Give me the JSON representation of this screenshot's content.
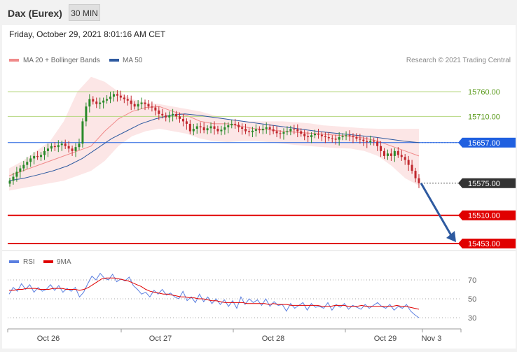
{
  "header": {
    "title": "Dax (Eurex)",
    "timeframe": "30 MIN"
  },
  "date_line": "Friday, October 29, 2021 8:01:16 AM CET",
  "copyright": "Research © 2021 Trading Central",
  "colors": {
    "bollinger": "#f08a8a",
    "ma50": "#2e5aa0",
    "resistance": "#b5d77f",
    "pivot": "#2060e0",
    "support": "#e00000",
    "price_box": "#333333",
    "up_candle": "#2a8a2a",
    "down_candle": "#c0282e",
    "rsi": "#5b7fe0",
    "rsi_ma": "#e00000",
    "arrow": "#2e5aa0"
  },
  "chart_data": [
    {
      "type": "candlestick",
      "title": "",
      "legend": [
        "MA 20 + Bollinger Bands",
        "MA 50"
      ],
      "legend_position": "top-left",
      "ylim": [
        15440,
        15800
      ],
      "x_ticks": [
        "Oct 26",
        "Oct 27",
        "Oct 28",
        "Oct 29",
        "Nov 3"
      ],
      "levels": [
        {
          "label": "15760.00",
          "value": 15760,
          "kind": "resistance"
        },
        {
          "label": "15710.00",
          "value": 15710,
          "kind": "resistance"
        },
        {
          "label": "15657.00",
          "value": 15657,
          "kind": "pivot"
        },
        {
          "label": "15575.00",
          "value": 15575,
          "kind": "last"
        },
        {
          "label": "15510.00",
          "value": 15510,
          "kind": "support"
        },
        {
          "label": "15453.00",
          "value": 15453,
          "kind": "support"
        }
      ],
      "close": [
        15580,
        15588,
        15598,
        15605,
        15612,
        15618,
        15625,
        15630,
        15628,
        15632,
        15640,
        15645,
        15650,
        15648,
        15652,
        15655,
        15650,
        15645,
        15640,
        15648,
        15655,
        15700,
        15730,
        15745,
        15740,
        15735,
        15738,
        15742,
        15745,
        15750,
        15755,
        15752,
        15748,
        15745,
        15742,
        15735,
        15730,
        15735,
        15738,
        15735,
        15730,
        15728,
        15722,
        15715,
        15712,
        15708,
        15712,
        15715,
        15710,
        15705,
        15700,
        15695,
        15680,
        15685,
        15690,
        15688,
        15682,
        15686,
        15690,
        15685,
        15680,
        15683,
        15688,
        15692,
        15695,
        15693,
        15688,
        15685,
        15680,
        15678,
        15681,
        15684,
        15682,
        15685,
        15688,
        15684,
        15680,
        15676,
        15675,
        15678,
        15680,
        15685,
        15684,
        15680,
        15675,
        15670,
        15668,
        15672,
        15675,
        15673,
        15670,
        15668,
        15666,
        15665,
        15663,
        15668,
        15670,
        15672,
        15670,
        15668,
        15665,
        15663,
        15660,
        15658,
        15661,
        15659,
        15650,
        15640,
        15630,
        15635,
        15630,
        15640,
        15632,
        15628,
        15622,
        15612,
        15600,
        15585,
        15575
      ],
      "candle_range": [
        [
          15575,
          15640
        ],
        [
          15755,
          15790
        ]
      ],
      "ma20_bollinger": {
        "ma": [
          15590,
          15600,
          15610,
          15620,
          15630,
          15640,
          15650,
          15680,
          15705,
          15720,
          15728,
          15730,
          15720,
          15712,
          15700,
          15695,
          15695,
          15690,
          15685,
          15683,
          15680,
          15678,
          15676,
          15674,
          15672,
          15670,
          15666,
          15660,
          15650,
          15640,
          15630
        ],
        "upper": [
          15605,
          15620,
          15640,
          15660,
          15700,
          15760,
          15790,
          15780,
          15760,
          15745,
          15738,
          15735,
          15730,
          15725,
          15720,
          15712,
          15705,
          15700,
          15700,
          15700,
          15700,
          15698,
          15696,
          15692,
          15690,
          15688,
          15686,
          15685,
          15685,
          15685,
          15685
        ],
        "lower": [
          15560,
          15565,
          15570,
          15575,
          15580,
          15590,
          15600,
          15620,
          15650,
          15670,
          15680,
          15685,
          15680,
          15675,
          15665,
          15660,
          15658,
          15660,
          15660,
          15658,
          15655,
          15652,
          15650,
          15648,
          15646,
          15645,
          15640,
          15630,
          15610,
          15585,
          15570
        ]
      },
      "ma50": [
        15580,
        15585,
        15592,
        15600,
        15610,
        15625,
        15645,
        15665,
        15680,
        15695,
        15705,
        15712,
        15715,
        15712,
        15708,
        15704,
        15700,
        15696,
        15692,
        15688,
        15684,
        15680,
        15677,
        15674,
        15671,
        15668,
        15664,
        15660,
        15657
      ],
      "forecast_arrow": {
        "from": 15575,
        "to": 15453
      }
    },
    {
      "type": "line",
      "title": "",
      "legend": [
        "RSI",
        "9MA"
      ],
      "y_ticks": [
        70,
        50,
        30
      ],
      "ylim": [
        20,
        85
      ],
      "rsi": [
        55,
        62,
        58,
        66,
        60,
        65,
        57,
        62,
        58,
        60,
        65,
        59,
        64,
        57,
        61,
        58,
        62,
        52,
        57,
        66,
        74,
        70,
        77,
        72,
        70,
        76,
        68,
        71,
        69,
        73,
        64,
        60,
        55,
        57,
        52,
        59,
        55,
        60,
        54,
        56,
        52,
        50,
        58,
        48,
        52,
        46,
        55,
        47,
        52,
        45,
        50,
        44,
        49,
        42,
        48,
        40,
        52,
        44,
        50,
        46,
        49,
        43,
        50,
        42,
        47,
        43,
        44,
        37,
        45,
        40,
        43,
        46,
        38,
        45,
        41,
        42,
        40,
        46,
        38,
        44,
        41,
        45,
        39,
        43,
        41,
        39,
        44,
        40,
        43,
        46,
        42,
        40,
        44,
        38,
        42,
        40,
        44,
        37,
        33,
        30
      ],
      "ma9": [
        59,
        59,
        60,
        60,
        61,
        61,
        61,
        60,
        60,
        60,
        61,
        61,
        61,
        60,
        60,
        60,
        59,
        60,
        62,
        65,
        68,
        71,
        72,
        72,
        72,
        71,
        70,
        69,
        67,
        65,
        63,
        60,
        58,
        57,
        56,
        55,
        55,
        54,
        53,
        52,
        52,
        51,
        51,
        50,
        50,
        49,
        48,
        48,
        47,
        46,
        46,
        46,
        46,
        46,
        45,
        45,
        45,
        45,
        45,
        44,
        45,
        44,
        44,
        44,
        43,
        43,
        43,
        43,
        43,
        43,
        43,
        42,
        42,
        42,
        43,
        43,
        43,
        42,
        42,
        42,
        43,
        42,
        42,
        42,
        42,
        42,
        42,
        42,
        43,
        42,
        42,
        41,
        40,
        39
      ]
    }
  ]
}
